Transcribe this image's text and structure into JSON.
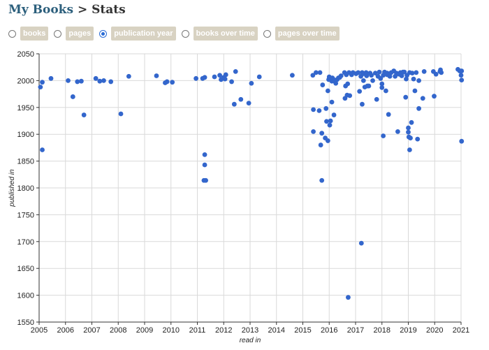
{
  "header": {
    "link": "My Books",
    "separator": ">",
    "page": "Stats"
  },
  "tabs": [
    {
      "label": "books",
      "checked": false
    },
    {
      "label": "pages",
      "checked": false
    },
    {
      "label": "publication year",
      "checked": true
    },
    {
      "label": "books over time",
      "checked": false
    },
    {
      "label": "pages over time",
      "checked": false
    }
  ],
  "colors": {
    "accent": "#2a6cd6",
    "point": "#3366cc",
    "tab_bg": "#d8d2c2",
    "grid": "#d9d9d9"
  },
  "chart_data": {
    "type": "scatter",
    "xlabel": "read in",
    "ylabel": "published in",
    "xlim": [
      2005,
      2021
    ],
    "ylim": [
      1550,
      2050
    ],
    "xticks": [
      2005,
      2006,
      2007,
      2008,
      2009,
      2010,
      2011,
      2012,
      2013,
      2014,
      2015,
      2016,
      2017,
      2018,
      2019,
      2020,
      2021
    ],
    "yticks": [
      1550,
      1600,
      1650,
      1700,
      1750,
      1800,
      1850,
      1900,
      1950,
      2000,
      2050
    ],
    "grid": true,
    "points": [
      [
        2005.05,
        1988
      ],
      [
        2005.12,
        1997
      ],
      [
        2005.12,
        1871
      ],
      [
        2005.45,
        2004
      ],
      [
        2006.1,
        2000
      ],
      [
        2006.28,
        1970
      ],
      [
        2006.45,
        1998
      ],
      [
        2006.6,
        1999
      ],
      [
        2006.7,
        1936
      ],
      [
        2007.15,
        2004
      ],
      [
        2007.3,
        1999
      ],
      [
        2007.45,
        2000
      ],
      [
        2007.72,
        1998
      ],
      [
        2008.1,
        1938
      ],
      [
        2008.4,
        2008
      ],
      [
        2009.45,
        2009
      ],
      [
        2009.78,
        1996
      ],
      [
        2009.85,
        1998
      ],
      [
        2010.05,
        1997
      ],
      [
        2010.95,
        2004
      ],
      [
        2011.2,
        2004
      ],
      [
        2011.28,
        2006
      ],
      [
        2011.28,
        1862
      ],
      [
        2011.28,
        1843
      ],
      [
        2011.25,
        1814
      ],
      [
        2011.32,
        1814
      ],
      [
        2011.65,
        2007
      ],
      [
        2011.85,
        2010
      ],
      [
        2011.9,
        2002
      ],
      [
        2012.0,
        2006
      ],
      [
        2012.05,
        2003
      ],
      [
        2012.08,
        2011
      ],
      [
        2012.3,
        1998
      ],
      [
        2012.4,
        1956
      ],
      [
        2012.45,
        2017
      ],
      [
        2012.65,
        1965
      ],
      [
        2012.95,
        1958
      ],
      [
        2013.05,
        1995
      ],
      [
        2013.35,
        2007
      ],
      [
        2014.6,
        2010
      ],
      [
        2015.38,
        2010
      ],
      [
        2015.4,
        1946
      ],
      [
        2015.4,
        1905
      ],
      [
        2015.5,
        2015
      ],
      [
        2015.62,
        1944
      ],
      [
        2015.65,
        2015
      ],
      [
        2015.68,
        1880
      ],
      [
        2015.72,
        1902
      ],
      [
        2015.72,
        1814
      ],
      [
        2015.75,
        1992
      ],
      [
        2015.85,
        1893
      ],
      [
        2015.88,
        1948
      ],
      [
        2015.9,
        1924
      ],
      [
        2015.95,
        1888
      ],
      [
        2015.95,
        1981
      ],
      [
        2015.98,
        2002
      ],
      [
        2016.0,
        2007
      ],
      [
        2016.02,
        1917
      ],
      [
        2016.05,
        2004
      ],
      [
        2016.05,
        1925
      ],
      [
        2016.1,
        1999
      ],
      [
        2016.1,
        1960
      ],
      [
        2016.12,
        2005
      ],
      [
        2016.15,
        2003
      ],
      [
        2016.18,
        1936
      ],
      [
        2016.2,
        1999
      ],
      [
        2016.25,
        1995
      ],
      [
        2016.3,
        2002
      ],
      [
        2016.35,
        2005
      ],
      [
        2016.4,
        2006
      ],
      [
        2016.45,
        2009
      ],
      [
        2016.58,
        2015
      ],
      [
        2016.6,
        1967
      ],
      [
        2016.62,
        1990
      ],
      [
        2016.65,
        2011
      ],
      [
        2016.68,
        1973
      ],
      [
        2016.7,
        1994
      ],
      [
        2016.72,
        1596
      ],
      [
        2016.75,
        2015
      ],
      [
        2016.78,
        1972
      ],
      [
        2016.85,
        2011
      ],
      [
        2016.9,
        2015
      ],
      [
        2017.02,
        2013
      ],
      [
        2017.1,
        2015
      ],
      [
        2017.15,
        1980
      ],
      [
        2017.2,
        2008
      ],
      [
        2017.22,
        1697
      ],
      [
        2017.25,
        2015
      ],
      [
        2017.25,
        1956
      ],
      [
        2017.3,
        2000
      ],
      [
        2017.3,
        2013
      ],
      [
        2017.35,
        1988
      ],
      [
        2017.4,
        2015
      ],
      [
        2017.42,
        2009
      ],
      [
        2017.45,
        1990
      ],
      [
        2017.5,
        1990
      ],
      [
        2017.55,
        2014
      ],
      [
        2017.6,
        2010
      ],
      [
        2017.65,
        2000
      ],
      [
        2017.75,
        2014
      ],
      [
        2017.8,
        1965
      ],
      [
        2017.85,
        2008
      ],
      [
        2017.9,
        2016
      ],
      [
        2017.95,
        2004
      ],
      [
        2018.0,
        1987
      ],
      [
        2018.0,
        1994
      ],
      [
        2018.05,
        2010
      ],
      [
        2018.05,
        1897
      ],
      [
        2018.1,
        2016
      ],
      [
        2018.15,
        1981
      ],
      [
        2018.2,
        2014
      ],
      [
        2018.2,
        2011
      ],
      [
        2018.25,
        1937
      ],
      [
        2018.3,
        2008
      ],
      [
        2018.35,
        2015
      ],
      [
        2018.45,
        2018
      ],
      [
        2018.5,
        2008
      ],
      [
        2018.55,
        2014
      ],
      [
        2018.6,
        1905
      ],
      [
        2018.65,
        2012
      ],
      [
        2018.7,
        2015
      ],
      [
        2018.75,
        2009
      ],
      [
        2018.8,
        2016
      ],
      [
        2018.85,
        2016
      ],
      [
        2018.9,
        1969
      ],
      [
        2018.92,
        2003
      ],
      [
        2018.95,
        2010
      ],
      [
        2019.0,
        1912
      ],
      [
        2019.0,
        1904
      ],
      [
        2019.02,
        1895
      ],
      [
        2019.05,
        1871
      ],
      [
        2019.05,
        2015
      ],
      [
        2019.08,
        1893
      ],
      [
        2019.12,
        1922
      ],
      [
        2019.15,
        2014
      ],
      [
        2019.2,
        2003
      ],
      [
        2019.25,
        1981
      ],
      [
        2019.3,
        2015
      ],
      [
        2019.35,
        1891
      ],
      [
        2019.4,
        1948
      ],
      [
        2019.4,
        2000
      ],
      [
        2019.55,
        1967
      ],
      [
        2019.6,
        2017
      ],
      [
        2019.95,
        2017
      ],
      [
        2019.98,
        1971
      ],
      [
        2020.05,
        2012
      ],
      [
        2020.2,
        2017
      ],
      [
        2020.22,
        2020
      ],
      [
        2020.25,
        2015
      ],
      [
        2020.88,
        2021
      ],
      [
        2020.95,
        2018
      ],
      [
        2021.0,
        2010
      ],
      [
        2021.02,
        2018
      ],
      [
        2021.02,
        2001
      ],
      [
        2021.02,
        1887
      ]
    ]
  }
}
